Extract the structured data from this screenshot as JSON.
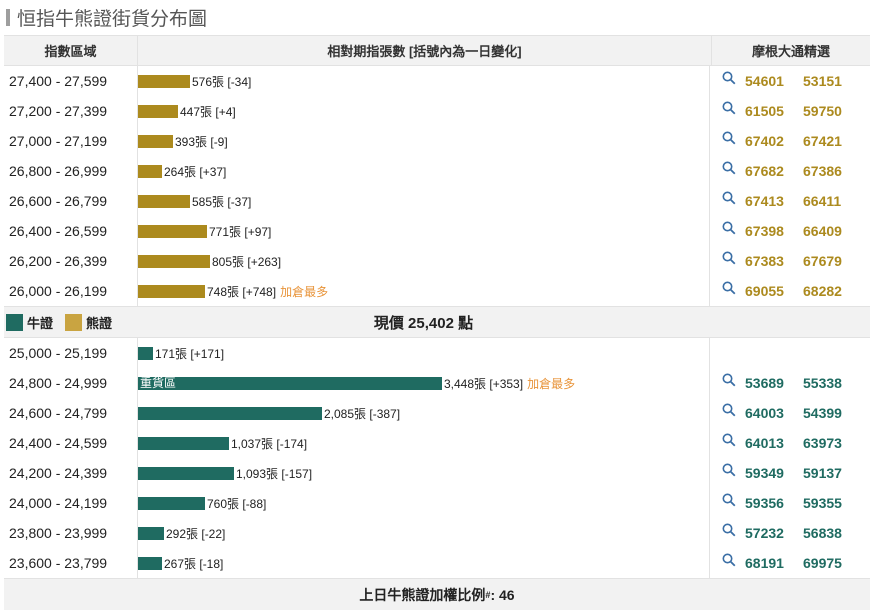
{
  "title": "恒指牛熊證街貨分布圖",
  "header": {
    "col_range": "指數區域",
    "col_bar": "相對期指張數 [括號內為一日變化]",
    "col_codes": "摩根大通精選"
  },
  "colors": {
    "bear": "#ac8a1e",
    "bull": "#1f6b61",
    "hot": "#e8943a"
  },
  "bear_rows": [
    {
      "range": "27,400 - 27,599",
      "count": 576,
      "label": "576張 [-34]",
      "hot": "",
      "code1": "54601",
      "code2": "53151"
    },
    {
      "range": "27,200 - 27,399",
      "count": 447,
      "label": "447張 [+4]",
      "hot": "",
      "code1": "61505",
      "code2": "59750"
    },
    {
      "range": "27,000 - 27,199",
      "count": 393,
      "label": "393張 [-9]",
      "hot": "",
      "code1": "67402",
      "code2": "67421"
    },
    {
      "range": "26,800 - 26,999",
      "count": 264,
      "label": "264張 [+37]",
      "hot": "",
      "code1": "67682",
      "code2": "67386"
    },
    {
      "range": "26,600 - 26,799",
      "count": 585,
      "label": "585張 [-37]",
      "hot": "",
      "code1": "67413",
      "code2": "66411"
    },
    {
      "range": "26,400 - 26,599",
      "count": 771,
      "label": "771張 [+97]",
      "hot": "",
      "code1": "67398",
      "code2": "66409"
    },
    {
      "range": "26,200 - 26,399",
      "count": 805,
      "label": "805張 [+263]",
      "hot": "",
      "code1": "67383",
      "code2": "67679"
    },
    {
      "range": "26,000 - 26,199",
      "count": 748,
      "label": "748張 [+748]",
      "hot": "加倉最多",
      "code1": "69055",
      "code2": "68282"
    }
  ],
  "legend": {
    "bull": "牛證",
    "bear": "熊證"
  },
  "current_price": "現價 25,402 點",
  "bull_rows": [
    {
      "range": "25,000 - 25,199",
      "count": 171,
      "label": "171張 [+171]",
      "hot": "",
      "inbar": "",
      "code1": "",
      "code2": ""
    },
    {
      "range": "24,800 - 24,999",
      "count": 3448,
      "label": "3,448張 [+353]",
      "hot": "加倉最多",
      "inbar": "重貨區",
      "code1": "53689",
      "code2": "55338"
    },
    {
      "range": "24,600 - 24,799",
      "count": 2085,
      "label": "2,085張 [-387]",
      "hot": "",
      "inbar": "",
      "code1": "64003",
      "code2": "54399"
    },
    {
      "range": "24,400 - 24,599",
      "count": 1037,
      "label": "1,037張 [-174]",
      "hot": "",
      "inbar": "",
      "code1": "64013",
      "code2": "63973"
    },
    {
      "range": "24,200 - 24,399",
      "count": 1093,
      "label": "1,093張 [-157]",
      "hot": "",
      "inbar": "",
      "code1": "59349",
      "code2": "59137"
    },
    {
      "range": "24,000 - 24,199",
      "count": 760,
      "label": "760張 [-88]",
      "hot": "",
      "inbar": "",
      "code1": "59356",
      "code2": "59355"
    },
    {
      "range": "23,800 - 23,999",
      "count": 292,
      "label": "292張 [-22]",
      "hot": "",
      "inbar": "",
      "code1": "57232",
      "code2": "56838"
    },
    {
      "range": "23,600 - 23,799",
      "count": 267,
      "label": "267張 [-18]",
      "hot": "",
      "inbar": "",
      "code1": "68191",
      "code2": "69975"
    }
  ],
  "footer": {
    "label": "上日牛熊證加權比例",
    "sup": "#",
    "value": ": 46"
  }
}
